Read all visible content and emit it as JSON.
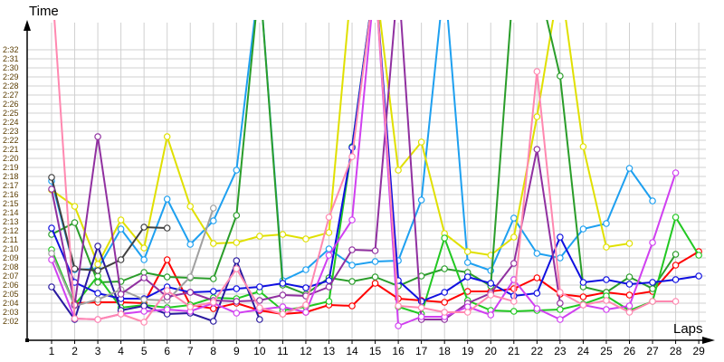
{
  "chart_data": {
    "type": "line",
    "title": "",
    "xlabel": "Laps",
    "ylabel": "Time",
    "x": [
      1,
      2,
      3,
      4,
      5,
      6,
      7,
      8,
      9,
      10,
      11,
      12,
      13,
      14,
      15,
      16,
      17,
      18,
      19,
      20,
      21,
      22,
      23,
      24,
      25,
      26,
      27,
      28,
      29
    ],
    "yticks": [
      "2:02",
      "2:03",
      "2:04",
      "2:05",
      "2:06",
      "2:07",
      "2:08",
      "2:09",
      "2:10",
      "2:11",
      "2:12",
      "2:13",
      "2:14",
      "2:15",
      "2:16",
      "2:17",
      "2:18",
      "2:19",
      "2:20",
      "2:21",
      "2:22",
      "2:23",
      "2:24",
      "2:25",
      "2:26",
      "2:27",
      "2:28",
      "2:29",
      "2:30",
      "2:31",
      "2:32"
    ],
    "ylim": [
      "2:00.0",
      "2:35.5"
    ],
    "grid": true,
    "markers": "hollow-circle",
    "series": [
      {
        "color": "#ff0000",
        "values": [
          null,
          "2:04.0",
          "2:04.1",
          "2:04.1",
          "2:04.0",
          "2:08.8",
          "2:03.8",
          "2:03.4",
          "2:04.0",
          "2:03.2",
          "2:02.8",
          "2:03.0",
          "2:03.8",
          "2:03.7",
          "2:06.2",
          "2:04.5",
          "2:04.3",
          "2:04.1",
          "2:05.3",
          "2:05.3",
          "2:05.6",
          "2:06.8",
          "2:05.0",
          "2:04.7",
          "2:05.2",
          "2:04.9",
          "2:05.3",
          "2:08.2",
          "2:09.7"
        ]
      },
      {
        "color": "#1ea0f0",
        "values": [
          "2:17.5",
          "2:07.7",
          "2:07.8",
          "2:12.2",
          "2:08.8",
          "2:15.5",
          "2:10.5",
          "2:13.1",
          "2:18.7",
          "2:40.0",
          "2:06.5",
          "2:07.7",
          "2:10.0",
          "2:08.2",
          "2:08.6",
          "2:08.7",
          "2:15.4",
          "2:40.0",
          "2:08.5",
          "2:07.6",
          "2:13.4",
          "2:09.5",
          "2:09.0",
          "2:12.2",
          "2:12.8",
          "2:18.9",
          "2:15.3",
          null,
          null
        ]
      },
      {
        "color": "#e0e000",
        "values": [
          "2:16.5",
          "2:14.7",
          "2:08.3",
          "2:13.2",
          "2:10.1",
          "2:22.4",
          "2:14.7",
          "2:10.6",
          "2:10.7",
          "2:11.4",
          "2:11.6",
          "2:11.1",
          "2:11.8",
          "2:40.0",
          "2:40.0",
          "2:18.7",
          "2:21.8",
          "2:11.7",
          "2:09.7",
          "2:09.3",
          "2:11.3",
          "2:24.6",
          "2:40.0",
          "2:21.3",
          "2:10.2",
          "2:10.6",
          null,
          null,
          null
        ]
      },
      {
        "color": "#2a9d2a",
        "values": [
          "2:11.6",
          "2:12.9",
          "2:06.3",
          "2:06.4",
          "2:07.4",
          "2:06.9",
          "2:06.8",
          "2:06.7",
          "2:13.7",
          "2:40.0",
          "2:06.0",
          "2:05.0",
          "2:06.8",
          "2:06.4",
          "2:06.9",
          "2:05.9",
          "2:07.0",
          "2:07.8",
          "2:07.4",
          "2:05.9",
          "2:40.0",
          "2:40.0",
          "2:29.1",
          "2:05.8",
          "2:05.2",
          "2:06.9",
          "2:05.6",
          "2:09.4",
          null
        ]
      },
      {
        "color": "#22c822",
        "values": [
          "2:09.9",
          "2:03.8",
          "2:07.0",
          "2:03.5",
          "2:03.8",
          "2:03.5",
          "2:03.8",
          "2:04.6",
          "2:04.5",
          "2:05.3",
          "2:03.2",
          "2:03.6",
          "2:04.2",
          "2:21.3",
          "2:40.0",
          "2:03.6",
          "2:02.8",
          "2:11.2",
          "2:04.3",
          "2:03.2",
          "2:03.1",
          "2:03.2",
          "2:03.3",
          "2:03.9",
          "2:04.8",
          "2:03.2",
          "2:04.2",
          "2:13.5",
          "2:09.3"
        ]
      },
      {
        "color": "#1010e0",
        "values": [
          "2:12.3",
          "2:06.3",
          "2:05.1",
          "2:04.5",
          "2:04.5",
          "2:05.8",
          "2:05.2",
          "2:05.3",
          "2:05.6",
          "2:05.8",
          "2:06.2",
          "2:05.7",
          "2:06.5",
          "2:21.2",
          "2:40.0",
          "2:06.5",
          "2:04.2",
          "2:05.2",
          "2:06.9",
          "2:06.2",
          "2:04.8",
          "2:05.1",
          "2:11.3",
          "2:06.3",
          "2:06.6",
          "2:06.1",
          "2:06.3",
          "2:06.6",
          "2:07.0"
        ]
      },
      {
        "color": "#2a1aa0",
        "values": [
          "2:05.8",
          "2:02.2",
          "2:10.3",
          "2:03.2",
          "2:03.7",
          "2:02.8",
          "2:02.9",
          "2:02.0",
          "2:08.7",
          "2:02.2",
          null,
          null,
          null,
          null,
          null,
          null,
          null,
          null,
          null,
          null,
          null,
          null,
          null,
          null,
          null,
          null,
          null,
          null,
          null
        ]
      },
      {
        "color": "#a0a0a0",
        "values": [
          "2:09.5",
          "2:03.7",
          "2:04.4",
          "2:05.5",
          "2:04.4",
          "2:04.3",
          "2:06.9",
          "2:14.5",
          null,
          null,
          null,
          null,
          null,
          null,
          null,
          null,
          null,
          null,
          null,
          null,
          null,
          null,
          null,
          null,
          null,
          null,
          null,
          null,
          null
        ]
      },
      {
        "color": "#404040",
        "values": [
          "2:17.9",
          "2:07.8",
          "2:07.6",
          "2:08.8",
          "2:12.4",
          "2:12.3",
          null,
          null,
          null,
          null,
          null,
          null,
          null,
          null,
          null,
          null,
          null,
          null,
          null,
          null,
          null,
          null,
          null,
          null,
          null,
          null,
          null,
          null,
          null
        ]
      },
      {
        "color": "#9030a0",
        "values": [
          "2:16.6",
          "2:03.8",
          "2:22.4",
          "2:05.0",
          "2:06.8",
          "2:04.7",
          "2:05.2",
          "2:04.3",
          "2:04.2",
          "2:04.3",
          "2:04.9",
          "2:04.8",
          "2:05.8",
          "2:09.9",
          "2:09.8",
          "2:40.0",
          "2:02.2",
          "2:02.2",
          "2:04.0",
          "2:05.1",
          "2:08.4",
          "2:21.0",
          "2:04.0",
          null,
          null,
          null,
          null,
          null,
          null
        ]
      },
      {
        "color": "#d040f0",
        "values": [
          "2:08.8",
          "2:02.3",
          "2:02.2",
          "2:02.8",
          "2:03.1",
          "2:03.3",
          "2:03.1",
          "2:04.0",
          "2:02.9",
          "2:03.3",
          "2:03.6",
          "2:03.0",
          "2:09.3",
          "2:13.2",
          "2:40.0",
          "2:01.5",
          "2:02.5",
          "2:02.5",
          "2:03.6",
          "2:02.7",
          "2:06.6",
          "2:03.4",
          "2:02.2",
          "2:03.8",
          "2:03.3",
          "2:03.7",
          "2:10.7",
          "2:18.4",
          null
        ]
      },
      {
        "color": "#ff88b0",
        "values": [
          "2:40.0",
          "2:02.3",
          "2:02.2",
          "2:02.8",
          "2:01.9",
          "2:05.4",
          "2:03.6",
          "2:04.1",
          "2:07.8",
          "2:03.5",
          "2:02.8",
          "2:03.8",
          "2:13.5",
          "2:20.2",
          "2:40.0",
          "2:03.7",
          "2:03.5",
          "2:03.0",
          "2:03.0",
          "2:04.9",
          "2:04.2",
          "2:29.6",
          "2:05.2",
          "2:03.8",
          "2:04.3",
          "2:03.0",
          "2:04.2",
          "2:04.2",
          null
        ]
      }
    ]
  }
}
